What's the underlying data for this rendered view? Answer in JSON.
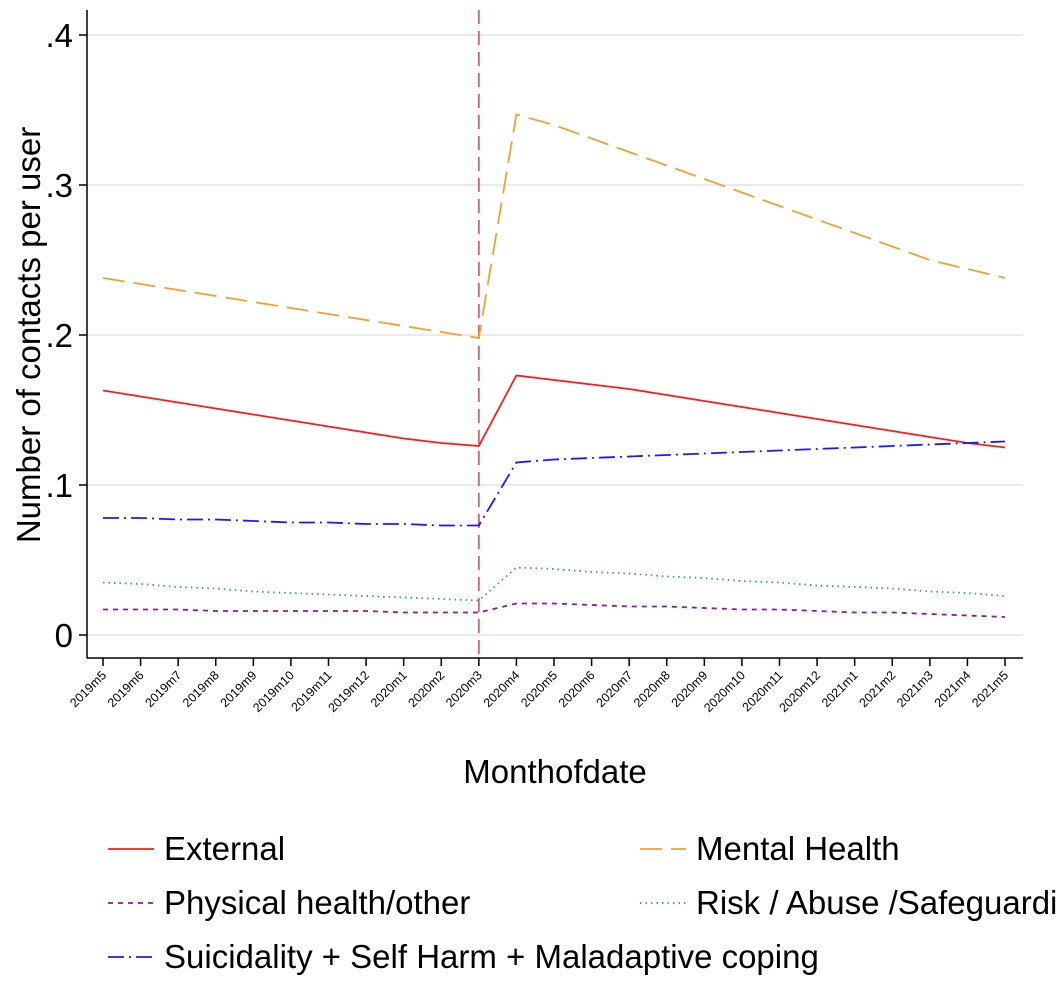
{
  "chart_data": {
    "type": "line",
    "title": "",
    "xlabel": "Monthofdate",
    "ylabel": "Number of contacts per user",
    "x": [
      "2019m5",
      "2019m6",
      "2019m7",
      "2019m8",
      "2019m9",
      "2019m10",
      "2019m11",
      "2019m12",
      "2020m1",
      "2020m2",
      "2020m3",
      "2020m4",
      "2020m5",
      "2020m6",
      "2020m7",
      "2020m8",
      "2020m9",
      "2020m10",
      "2020m11",
      "2020m12",
      "2021m1",
      "2021m2",
      "2021m3",
      "2021m4",
      "2021m5"
    ],
    "ylim": [
      0,
      0.4
    ],
    "yticks": [
      0,
      0.1,
      0.2,
      0.3,
      0.4
    ],
    "ytick_labels": [
      "0",
      ".1",
      ".2",
      ".3",
      ".4"
    ],
    "grid": true,
    "reference_line": {
      "x": "2020m3",
      "color": "#e05a6a",
      "style": "dashed"
    },
    "legend_position": "bottom",
    "series": [
      {
        "name": "External",
        "color": "#ff1a1a",
        "dash": "solid",
        "values": [
          0.163,
          0.159,
          0.155,
          0.151,
          0.147,
          0.143,
          0.139,
          0.135,
          0.131,
          0.128,
          0.126,
          0.173,
          0.17,
          0.167,
          0.164,
          0.16,
          0.156,
          0.152,
          0.148,
          0.144,
          0.14,
          0.136,
          0.132,
          0.128,
          0.125
        ]
      },
      {
        "name": "Mental Health",
        "color": "#f5a030",
        "dash": "longdash",
        "values": [
          0.238,
          0.234,
          0.23,
          0.226,
          0.222,
          0.218,
          0.214,
          0.21,
          0.206,
          0.202,
          0.198,
          0.347,
          0.34,
          0.331,
          0.322,
          0.313,
          0.304,
          0.295,
          0.286,
          0.277,
          0.268,
          0.259,
          0.25,
          0.244,
          0.238
        ]
      },
      {
        "name": "Physical health/other",
        "color": "#8a1aa8",
        "dash": "shortdash",
        "values": [
          0.017,
          0.017,
          0.017,
          0.016,
          0.016,
          0.016,
          0.016,
          0.016,
          0.015,
          0.015,
          0.015,
          0.021,
          0.021,
          0.02,
          0.019,
          0.019,
          0.018,
          0.017,
          0.017,
          0.016,
          0.015,
          0.015,
          0.014,
          0.013,
          0.012
        ]
      },
      {
        "name": "Risk / Abuse /Safeguarding",
        "color": "#2aa090",
        "dash": "dot",
        "values": [
          0.035,
          0.034,
          0.032,
          0.031,
          0.029,
          0.028,
          0.027,
          0.026,
          0.025,
          0.024,
          0.023,
          0.045,
          0.044,
          0.042,
          0.041,
          0.039,
          0.038,
          0.036,
          0.035,
          0.033,
          0.032,
          0.031,
          0.029,
          0.028,
          0.026
        ]
      },
      {
        "name": "Suicidality + Self Harm + Maladaptive coping",
        "color": "#1a1aff",
        "dash": "dashdot",
        "values": [
          0.078,
          0.078,
          0.077,
          0.077,
          0.076,
          0.075,
          0.075,
          0.074,
          0.074,
          0.073,
          0.073,
          0.115,
          0.117,
          0.118,
          0.119,
          0.12,
          0.121,
          0.122,
          0.123,
          0.124,
          0.125,
          0.126,
          0.127,
          0.128,
          0.129
        ]
      }
    ]
  }
}
